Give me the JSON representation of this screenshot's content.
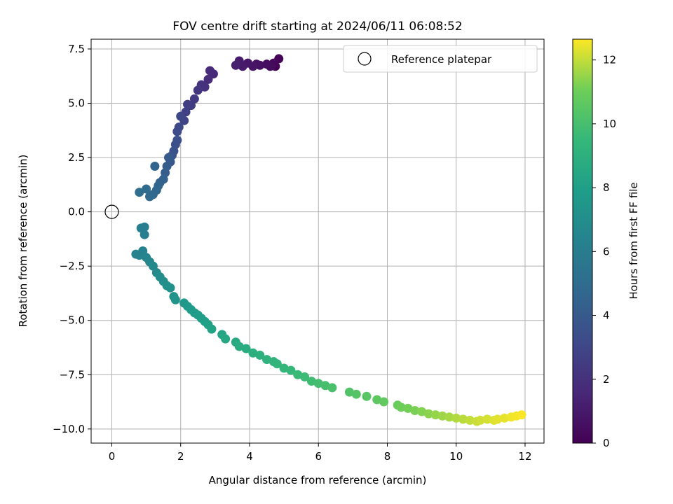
{
  "chart_data": {
    "type": "scatter",
    "title": "FOV centre drift starting at 2024/06/11 06:08:52",
    "xlabel": "Angular distance from reference (arcmin)",
    "ylabel": "Rotation from reference (arcmin)",
    "xlim": [
      -0.6,
      12.55
    ],
    "ylim": [
      -10.65,
      7.95
    ],
    "xticks": [
      0,
      2,
      4,
      6,
      8,
      10,
      12
    ],
    "xtick_labels": [
      "0",
      "2",
      "4",
      "6",
      "8",
      "10",
      "12"
    ],
    "yticks": [
      -10.0,
      -7.5,
      -5.0,
      -2.5,
      0.0,
      2.5,
      5.0,
      7.5
    ],
    "ytick_labels": [
      "−10.0",
      "−7.5",
      "−5.0",
      "−2.5",
      "0.0",
      "2.5",
      "5.0",
      "7.5"
    ],
    "grid": true,
    "legend": {
      "placement": "top-right",
      "entries": [
        "Reference platepar"
      ]
    },
    "colormap": "viridis",
    "colorbar": {
      "label": "Hours from first FF file",
      "range": [
        0,
        12.65
      ],
      "ticks": [
        0,
        2,
        4,
        6,
        8,
        10,
        12
      ],
      "tick_labels": [
        "0",
        "2",
        "4",
        "6",
        "8",
        "10",
        "12"
      ]
    },
    "reference_point": {
      "name": "Reference platepar",
      "x": 0.0,
      "y": 0.0
    },
    "series": [
      {
        "color_by": "hours",
        "x": [
          4.75,
          4.85,
          4.7,
          4.6,
          4.5,
          4.3,
          4.2,
          4.1,
          3.95,
          3.8,
          3.7,
          3.6,
          2.95,
          2.85,
          2.8,
          2.7,
          2.6,
          2.5,
          2.4,
          2.3,
          2.2,
          2.15,
          2.1,
          2.0,
          1.95,
          1.9,
          1.9,
          1.85,
          1.8,
          1.75,
          1.7,
          1.65,
          1.6,
          1.55,
          1.5,
          1.4,
          1.35,
          1.3,
          1.2,
          1.1,
          1.0,
          0.8,
          1.25,
          0.85,
          0.8,
          0.95,
          0.95,
          0.7,
          0.9,
          1.0,
          1.1,
          1.2,
          1.3,
          1.4,
          1.5,
          1.6,
          1.7,
          1.8,
          1.85,
          2.1,
          2.2,
          2.3,
          2.4,
          2.5,
          2.6,
          2.7,
          2.8,
          2.9,
          3.2,
          3.3,
          3.6,
          3.7,
          3.9,
          4.1,
          4.3,
          4.5,
          4.7,
          4.8,
          5.0,
          5.2,
          5.4,
          5.6,
          5.8,
          6.0,
          6.2,
          6.4,
          6.9,
          7.1,
          7.4,
          7.7,
          7.9,
          8.3,
          8.4,
          8.6,
          8.8,
          9.0,
          9.2,
          9.4,
          9.6,
          9.8,
          10.0,
          10.2,
          10.4,
          10.6,
          10.7,
          10.9,
          11.1,
          11.2,
          11.4,
          11.6,
          11.75,
          11.9
        ],
        "y": [
          6.7,
          7.05,
          6.85,
          6.7,
          6.8,
          6.75,
          6.8,
          6.7,
          6.85,
          6.7,
          6.95,
          6.75,
          6.35,
          6.5,
          6.1,
          5.75,
          5.85,
          5.6,
          5.2,
          4.9,
          4.95,
          4.6,
          4.2,
          4.4,
          3.9,
          3.7,
          3.3,
          3.1,
          2.8,
          2.6,
          2.3,
          2.5,
          2.1,
          1.8,
          1.5,
          1.35,
          1.2,
          1.0,
          0.8,
          0.7,
          1.05,
          0.9,
          2.1,
          -0.75,
          -2.0,
          -1.05,
          -0.7,
          -1.95,
          -1.8,
          -2.1,
          -2.3,
          -2.5,
          -2.8,
          -3.0,
          -3.2,
          -3.4,
          -3.5,
          -3.9,
          -4.05,
          -4.2,
          -4.35,
          -4.5,
          -4.65,
          -4.75,
          -4.9,
          -5.05,
          -5.2,
          -5.4,
          -5.65,
          -5.85,
          -6.0,
          -6.2,
          -6.3,
          -6.5,
          -6.6,
          -6.8,
          -6.9,
          -7.0,
          -7.2,
          -7.3,
          -7.5,
          -7.6,
          -7.8,
          -7.9,
          -8.0,
          -8.1,
          -8.3,
          -8.4,
          -8.5,
          -8.65,
          -8.75,
          -8.9,
          -9.0,
          -9.05,
          -9.15,
          -9.2,
          -9.3,
          -9.35,
          -9.4,
          -9.45,
          -9.5,
          -9.55,
          -9.6,
          -9.65,
          -9.6,
          -9.55,
          -9.6,
          -9.55,
          -9.5,
          -9.45,
          -9.4,
          -9.35
        ],
        "hours": [
          0.1,
          0.2,
          0.3,
          0.4,
          0.5,
          0.6,
          0.7,
          0.8,
          0.9,
          1.0,
          1.1,
          1.2,
          1.6,
          1.7,
          1.8,
          2.0,
          2.1,
          2.2,
          2.4,
          2.5,
          2.6,
          2.7,
          2.9,
          3.0,
          3.1,
          3.2,
          3.4,
          3.5,
          3.6,
          3.7,
          3.9,
          4.0,
          4.1,
          4.2,
          4.4,
          4.5,
          4.6,
          4.7,
          4.8,
          4.9,
          5.0,
          5.1,
          4.6,
          6.2,
          6.3,
          6.1,
          6.0,
          6.4,
          6.3,
          6.5,
          6.6,
          6.7,
          6.8,
          6.9,
          7.0,
          7.1,
          7.2,
          7.3,
          7.4,
          7.5,
          7.6,
          7.7,
          7.8,
          7.85,
          7.9,
          8.0,
          8.1,
          8.2,
          8.4,
          8.5,
          8.6,
          8.7,
          8.8,
          8.9,
          9.0,
          9.1,
          9.2,
          9.3,
          9.4,
          9.5,
          9.6,
          9.7,
          9.8,
          9.9,
          10.0,
          10.1,
          10.3,
          10.4,
          10.5,
          10.6,
          10.7,
          10.9,
          11.0,
          11.1,
          11.2,
          11.3,
          11.4,
          11.5,
          11.6,
          11.7,
          11.8,
          11.9,
          12.0,
          12.1,
          12.15,
          12.2,
          12.3,
          12.35,
          12.4,
          12.5,
          12.55,
          12.6
        ]
      }
    ]
  }
}
